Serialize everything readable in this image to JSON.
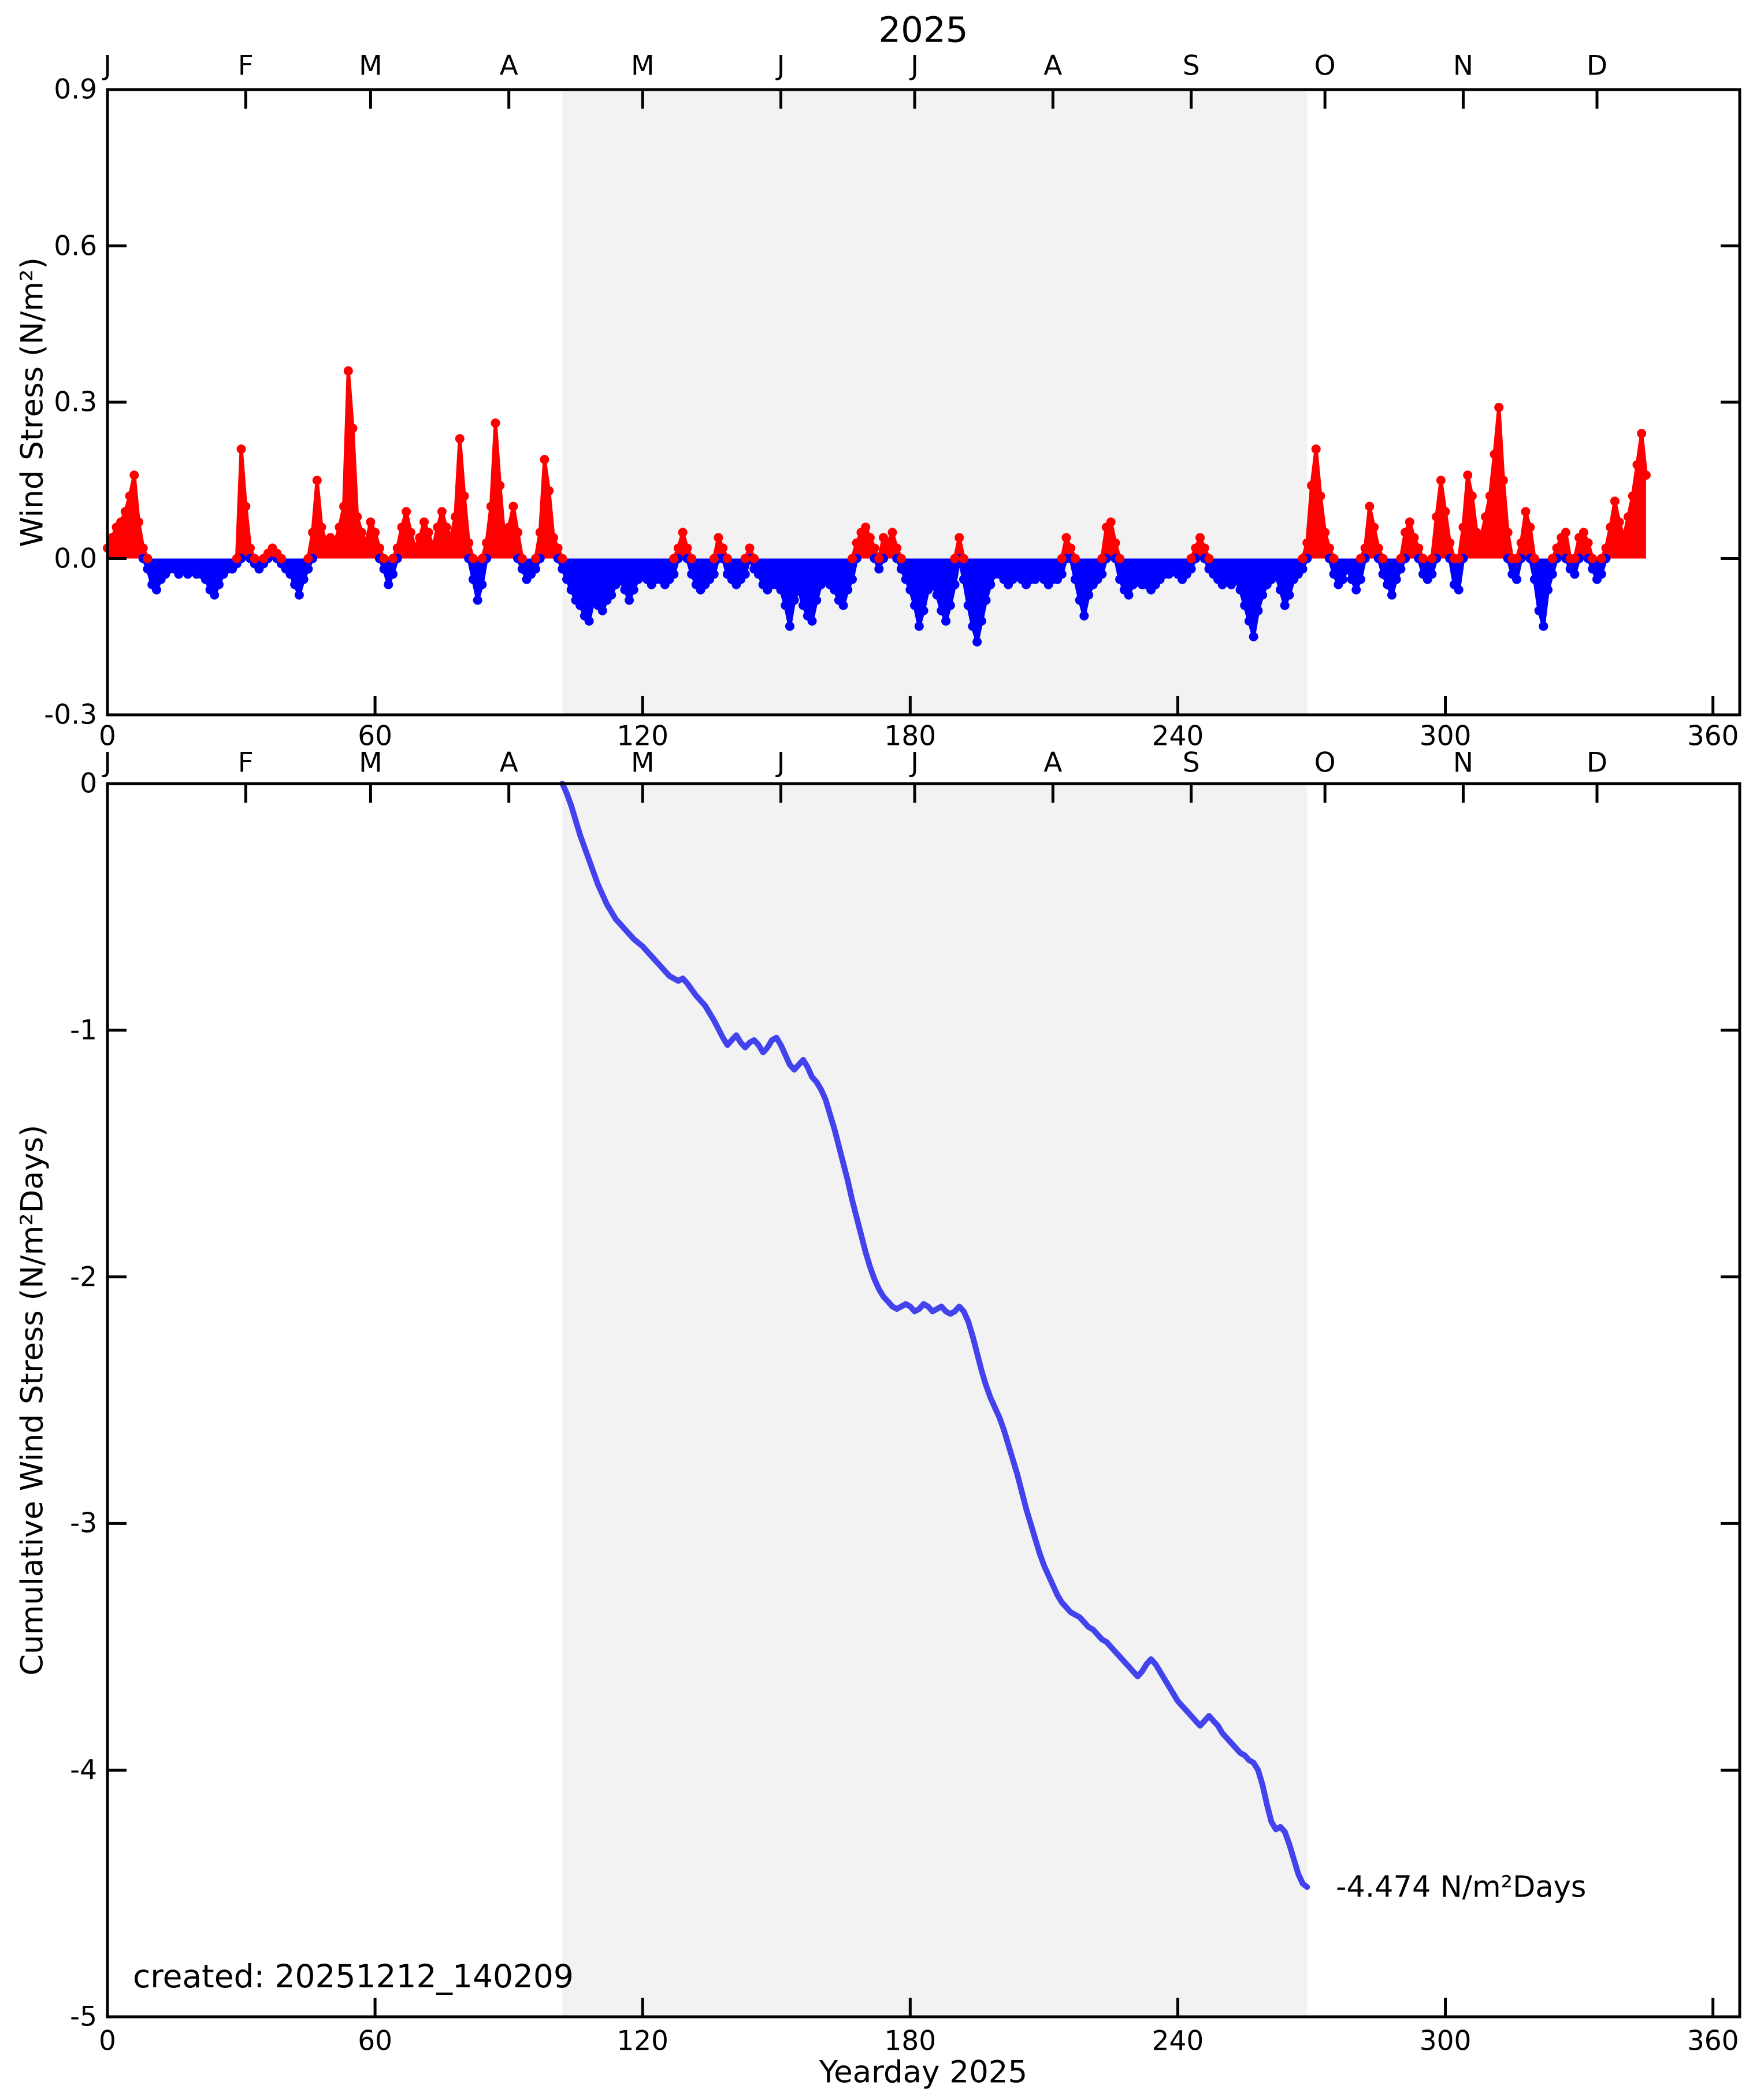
{
  "title": "2025",
  "created_text": "created: 20251212_140209",
  "xlabel": "Yearday 2025",
  "months": {
    "labels": [
      "J",
      "F",
      "M",
      "A",
      "M",
      "J",
      "J",
      "A",
      "S",
      "O",
      "N",
      "D"
    ],
    "tick_days": [
      0,
      31,
      59,
      90,
      120,
      151,
      181,
      212,
      243,
      273,
      304,
      334
    ]
  },
  "colors": {
    "positive": "#ff0000",
    "negative": "#0000ff",
    "cumulative_line": "#4343ee",
    "shaded_band": "#f2f2f2",
    "axis": "#000000"
  },
  "chart_data": [
    {
      "type": "area",
      "title": "2025",
      "xlabel": "",
      "ylabel": "Wind Stress (N/m²)",
      "xlim": [
        0,
        366
      ],
      "ylim": [
        -0.3,
        0.9
      ],
      "xticks": [
        0,
        60,
        120,
        180,
        240,
        300,
        360
      ],
      "yticks": [
        0.9,
        0.6,
        0.3,
        0.0,
        -0.3
      ],
      "ytick_labels": [
        "0.9",
        "0.6",
        "0.3",
        "0.0",
        "-0.3"
      ],
      "shaded_region_days": [
        102,
        269
      ],
      "legend": "none",
      "grid": false,
      "x_start_day": 0,
      "values": [
        0.02,
        0.04,
        0.06,
        0.07,
        0.09,
        0.12,
        0.16,
        0.07,
        0.02,
        -0.02,
        -0.05,
        -0.06,
        -0.04,
        -0.03,
        -0.02,
        -0.02,
        -0.03,
        -0.02,
        -0.03,
        -0.02,
        -0.03,
        -0.03,
        -0.04,
        -0.06,
        -0.07,
        -0.05,
        -0.03,
        -0.02,
        -0.02,
        -0.01,
        0.21,
        0.1,
        0.02,
        -0.01,
        -0.02,
        -0.01,
        0.01,
        0.02,
        0.01,
        -0.01,
        -0.02,
        -0.03,
        -0.05,
        -0.07,
        -0.04,
        -0.02,
        0.05,
        0.15,
        0.06,
        0.03,
        0.04,
        0.03,
        0.06,
        0.1,
        0.36,
        0.25,
        0.08,
        0.05,
        0.03,
        0.07,
        0.05,
        0.02,
        -0.02,
        -0.05,
        -0.03,
        0.02,
        0.06,
        0.09,
        0.05,
        0.02,
        0.04,
        0.07,
        0.05,
        0.02,
        0.06,
        0.09,
        0.06,
        0.04,
        0.08,
        0.23,
        0.12,
        0.03,
        -0.04,
        -0.08,
        -0.05,
        0.03,
        0.1,
        0.26,
        0.14,
        0.04,
        0.06,
        0.1,
        0.05,
        -0.02,
        -0.04,
        -0.03,
        -0.02,
        0.05,
        0.19,
        0.13,
        0.04,
        0.02,
        -0.02,
        -0.04,
        -0.06,
        -0.08,
        -0.09,
        -0.11,
        -0.12,
        -0.08,
        -0.09,
        -0.1,
        -0.08,
        -0.07,
        -0.05,
        -0.04,
        -0.06,
        -0.08,
        -0.06,
        -0.04,
        -0.03,
        -0.04,
        -0.05,
        -0.04,
        -0.04,
        -0.05,
        -0.04,
        -0.03,
        0.02,
        0.05,
        0.02,
        -0.03,
        -0.05,
        -0.06,
        -0.05,
        -0.04,
        -0.03,
        0.04,
        0.02,
        -0.03,
        -0.04,
        -0.05,
        -0.04,
        -0.03,
        0.02,
        -0.02,
        -0.03,
        -0.05,
        -0.06,
        -0.05,
        -0.05,
        -0.06,
        -0.09,
        -0.13,
        -0.08,
        -0.06,
        -0.09,
        -0.11,
        -0.12,
        -0.08,
        -0.05,
        -0.04,
        -0.05,
        -0.06,
        -0.08,
        -0.09,
        -0.06,
        -0.04,
        0.03,
        0.05,
        0.06,
        0.04,
        0.02,
        -0.02,
        0.04,
        0.03,
        0.05,
        0.02,
        -0.02,
        -0.04,
        -0.06,
        -0.09,
        -0.13,
        -0.1,
        -0.06,
        -0.05,
        -0.07,
        -0.1,
        -0.12,
        -0.09,
        -0.05,
        0.04,
        -0.04,
        -0.09,
        -0.13,
        -0.16,
        -0.12,
        -0.08,
        -0.05,
        -0.03,
        -0.03,
        -0.04,
        -0.05,
        -0.04,
        -0.03,
        -0.04,
        -0.05,
        -0.04,
        -0.04,
        -0.03,
        -0.04,
        -0.05,
        -0.04,
        -0.04,
        -0.03,
        0.04,
        0.02,
        -0.04,
        -0.08,
        -0.11,
        -0.07,
        -0.05,
        -0.04,
        -0.03,
        0.06,
        0.07,
        0.03,
        -0.04,
        -0.06,
        -0.07,
        -0.05,
        -0.04,
        -0.05,
        -0.05,
        -0.06,
        -0.05,
        -0.04,
        -0.03,
        -0.03,
        -0.02,
        -0.03,
        -0.04,
        -0.03,
        -0.02,
        0.02,
        0.04,
        0.02,
        -0.02,
        -0.03,
        -0.04,
        -0.05,
        -0.04,
        -0.05,
        -0.04,
        -0.06,
        -0.09,
        -0.12,
        -0.15,
        -0.1,
        -0.07,
        -0.05,
        -0.04,
        -0.03,
        -0.06,
        -0.09,
        -0.07,
        -0.04,
        -0.03,
        -0.02,
        0.03,
        0.14,
        0.21,
        0.12,
        0.05,
        0.02,
        -0.03,
        -0.05,
        -0.04,
        -0.02,
        -0.04,
        -0.06,
        -0.04,
        0.02,
        0.1,
        0.06,
        0.02,
        -0.03,
        -0.05,
        -0.07,
        -0.04,
        -0.02,
        0.05,
        0.07,
        0.04,
        0.02,
        -0.03,
        -0.04,
        -0.03,
        0.08,
        0.15,
        0.09,
        0.03,
        -0.05,
        -0.06,
        0.06,
        0.16,
        0.12,
        0.05,
        0.04,
        0.08,
        0.12,
        0.2,
        0.29,
        0.15,
        0.05,
        -0.03,
        -0.04,
        0.03,
        0.09,
        0.06,
        -0.04,
        -0.1,
        -0.13,
        -0.06,
        -0.03,
        0.02,
        0.04,
        0.05,
        -0.02,
        -0.03,
        0.04,
        0.05,
        0.03,
        -0.02,
        -0.04,
        -0.03,
        0.02,
        0.06,
        0.11,
        0.07,
        0.04,
        0.08,
        0.12,
        0.18,
        0.24,
        0.16
      ]
    },
    {
      "type": "line",
      "xlabel": "Yearday 2025",
      "ylabel": "Cumulative Wind Stress (N/m²Days)",
      "xlim": [
        0,
        366
      ],
      "ylim": [
        -5,
        0
      ],
      "xticks": [
        0,
        60,
        120,
        180,
        240,
        300,
        360
      ],
      "yticks": [
        0,
        -1,
        -2,
        -3,
        -4,
        -5
      ],
      "ytick_labels": [
        "0",
        "-1",
        "-2",
        "-3",
        "-4",
        "-5"
      ],
      "shaded_region_days": [
        102,
        269
      ],
      "legend": "none",
      "grid": false,
      "points": [
        [
          102,
          0
        ],
        [
          103,
          -0.04
        ],
        [
          104,
          -0.09
        ],
        [
          105,
          -0.15
        ],
        [
          106,
          -0.21
        ],
        [
          107,
          -0.26
        ],
        [
          108,
          -0.31
        ],
        [
          109,
          -0.36
        ],
        [
          110,
          -0.41
        ],
        [
          111,
          -0.45
        ],
        [
          112,
          -0.49
        ],
        [
          113,
          -0.52
        ],
        [
          114,
          -0.55
        ],
        [
          115,
          -0.57
        ],
        [
          116,
          -0.59
        ],
        [
          117,
          -0.61
        ],
        [
          118,
          -0.63
        ],
        [
          120,
          -0.66
        ],
        [
          122,
          -0.7
        ],
        [
          124,
          -0.74
        ],
        [
          126,
          -0.78
        ],
        [
          128,
          -0.8
        ],
        [
          129,
          -0.79
        ],
        [
          130,
          -0.81
        ],
        [
          132,
          -0.86
        ],
        [
          134,
          -0.9
        ],
        [
          136,
          -0.96
        ],
        [
          138,
          -1.03
        ],
        [
          139,
          -1.06
        ],
        [
          140,
          -1.04
        ],
        [
          141,
          -1.02
        ],
        [
          142,
          -1.05
        ],
        [
          143,
          -1.07
        ],
        [
          144,
          -1.05
        ],
        [
          145,
          -1.04
        ],
        [
          146,
          -1.06
        ],
        [
          147,
          -1.09
        ],
        [
          148,
          -1.07
        ],
        [
          149,
          -1.04
        ],
        [
          150,
          -1.03
        ],
        [
          151,
          -1.06
        ],
        [
          152,
          -1.1
        ],
        [
          153,
          -1.14
        ],
        [
          154,
          -1.16
        ],
        [
          155,
          -1.14
        ],
        [
          156,
          -1.12
        ],
        [
          157,
          -1.15
        ],
        [
          158,
          -1.19
        ],
        [
          159,
          -1.21
        ],
        [
          160,
          -1.24
        ],
        [
          161,
          -1.28
        ],
        [
          162,
          -1.34
        ],
        [
          163,
          -1.4
        ],
        [
          164,
          -1.47
        ],
        [
          165,
          -1.54
        ],
        [
          166,
          -1.61
        ],
        [
          167,
          -1.69
        ],
        [
          168,
          -1.76
        ],
        [
          169,
          -1.83
        ],
        [
          170,
          -1.9
        ],
        [
          171,
          -1.96
        ],
        [
          172,
          -2.01
        ],
        [
          173,
          -2.05
        ],
        [
          174,
          -2.08
        ],
        [
          175,
          -2.1
        ],
        [
          176,
          -2.12
        ],
        [
          177,
          -2.13
        ],
        [
          178,
          -2.12
        ],
        [
          179,
          -2.11
        ],
        [
          180,
          -2.12
        ],
        [
          181,
          -2.14
        ],
        [
          182,
          -2.13
        ],
        [
          183,
          -2.11
        ],
        [
          184,
          -2.12
        ],
        [
          185,
          -2.14
        ],
        [
          186,
          -2.13
        ],
        [
          187,
          -2.12
        ],
        [
          188,
          -2.14
        ],
        [
          189,
          -2.15
        ],
        [
          190,
          -2.14
        ],
        [
          191,
          -2.12
        ],
        [
          192,
          -2.14
        ],
        [
          193,
          -2.18
        ],
        [
          194,
          -2.24
        ],
        [
          195,
          -2.31
        ],
        [
          196,
          -2.38
        ],
        [
          197,
          -2.44
        ],
        [
          198,
          -2.49
        ],
        [
          199,
          -2.53
        ],
        [
          200,
          -2.57
        ],
        [
          201,
          -2.62
        ],
        [
          202,
          -2.68
        ],
        [
          203,
          -2.74
        ],
        [
          204,
          -2.8
        ],
        [
          205,
          -2.87
        ],
        [
          206,
          -2.94
        ],
        [
          207,
          -3.0
        ],
        [
          208,
          -3.06
        ],
        [
          209,
          -3.12
        ],
        [
          210,
          -3.17
        ],
        [
          211,
          -3.21
        ],
        [
          212,
          -3.25
        ],
        [
          213,
          -3.29
        ],
        [
          214,
          -3.32
        ],
        [
          215,
          -3.34
        ],
        [
          216,
          -3.36
        ],
        [
          217,
          -3.37
        ],
        [
          218,
          -3.38
        ],
        [
          219,
          -3.4
        ],
        [
          220,
          -3.42
        ],
        [
          221,
          -3.43
        ],
        [
          222,
          -3.45
        ],
        [
          223,
          -3.47
        ],
        [
          224,
          -3.48
        ],
        [
          225,
          -3.5
        ],
        [
          226,
          -3.52
        ],
        [
          227,
          -3.54
        ],
        [
          228,
          -3.56
        ],
        [
          229,
          -3.58
        ],
        [
          230,
          -3.6
        ],
        [
          231,
          -3.62
        ],
        [
          232,
          -3.6
        ],
        [
          233,
          -3.57
        ],
        [
          234,
          -3.55
        ],
        [
          235,
          -3.57
        ],
        [
          236,
          -3.6
        ],
        [
          237,
          -3.63
        ],
        [
          238,
          -3.66
        ],
        [
          239,
          -3.69
        ],
        [
          240,
          -3.72
        ],
        [
          241,
          -3.74
        ],
        [
          242,
          -3.76
        ],
        [
          243,
          -3.78
        ],
        [
          244,
          -3.8
        ],
        [
          245,
          -3.82
        ],
        [
          246,
          -3.8
        ],
        [
          247,
          -3.78
        ],
        [
          248,
          -3.8
        ],
        [
          249,
          -3.82
        ],
        [
          250,
          -3.85
        ],
        [
          251,
          -3.87
        ],
        [
          252,
          -3.89
        ],
        [
          253,
          -3.91
        ],
        [
          254,
          -3.93
        ],
        [
          255,
          -3.94
        ],
        [
          256,
          -3.96
        ],
        [
          257,
          -3.97
        ],
        [
          258,
          -4.0
        ],
        [
          259,
          -4.06
        ],
        [
          260,
          -4.14
        ],
        [
          261,
          -4.21
        ],
        [
          262,
          -4.24
        ],
        [
          263,
          -4.23
        ],
        [
          264,
          -4.25
        ],
        [
          265,
          -4.3
        ],
        [
          266,
          -4.36
        ],
        [
          267,
          -4.42
        ],
        [
          268,
          -4.46
        ],
        [
          269,
          -4.474
        ]
      ],
      "end_annotation": {
        "text": "-4.474 N/m²Days",
        "day": 275,
        "value": -4.474
      }
    }
  ]
}
